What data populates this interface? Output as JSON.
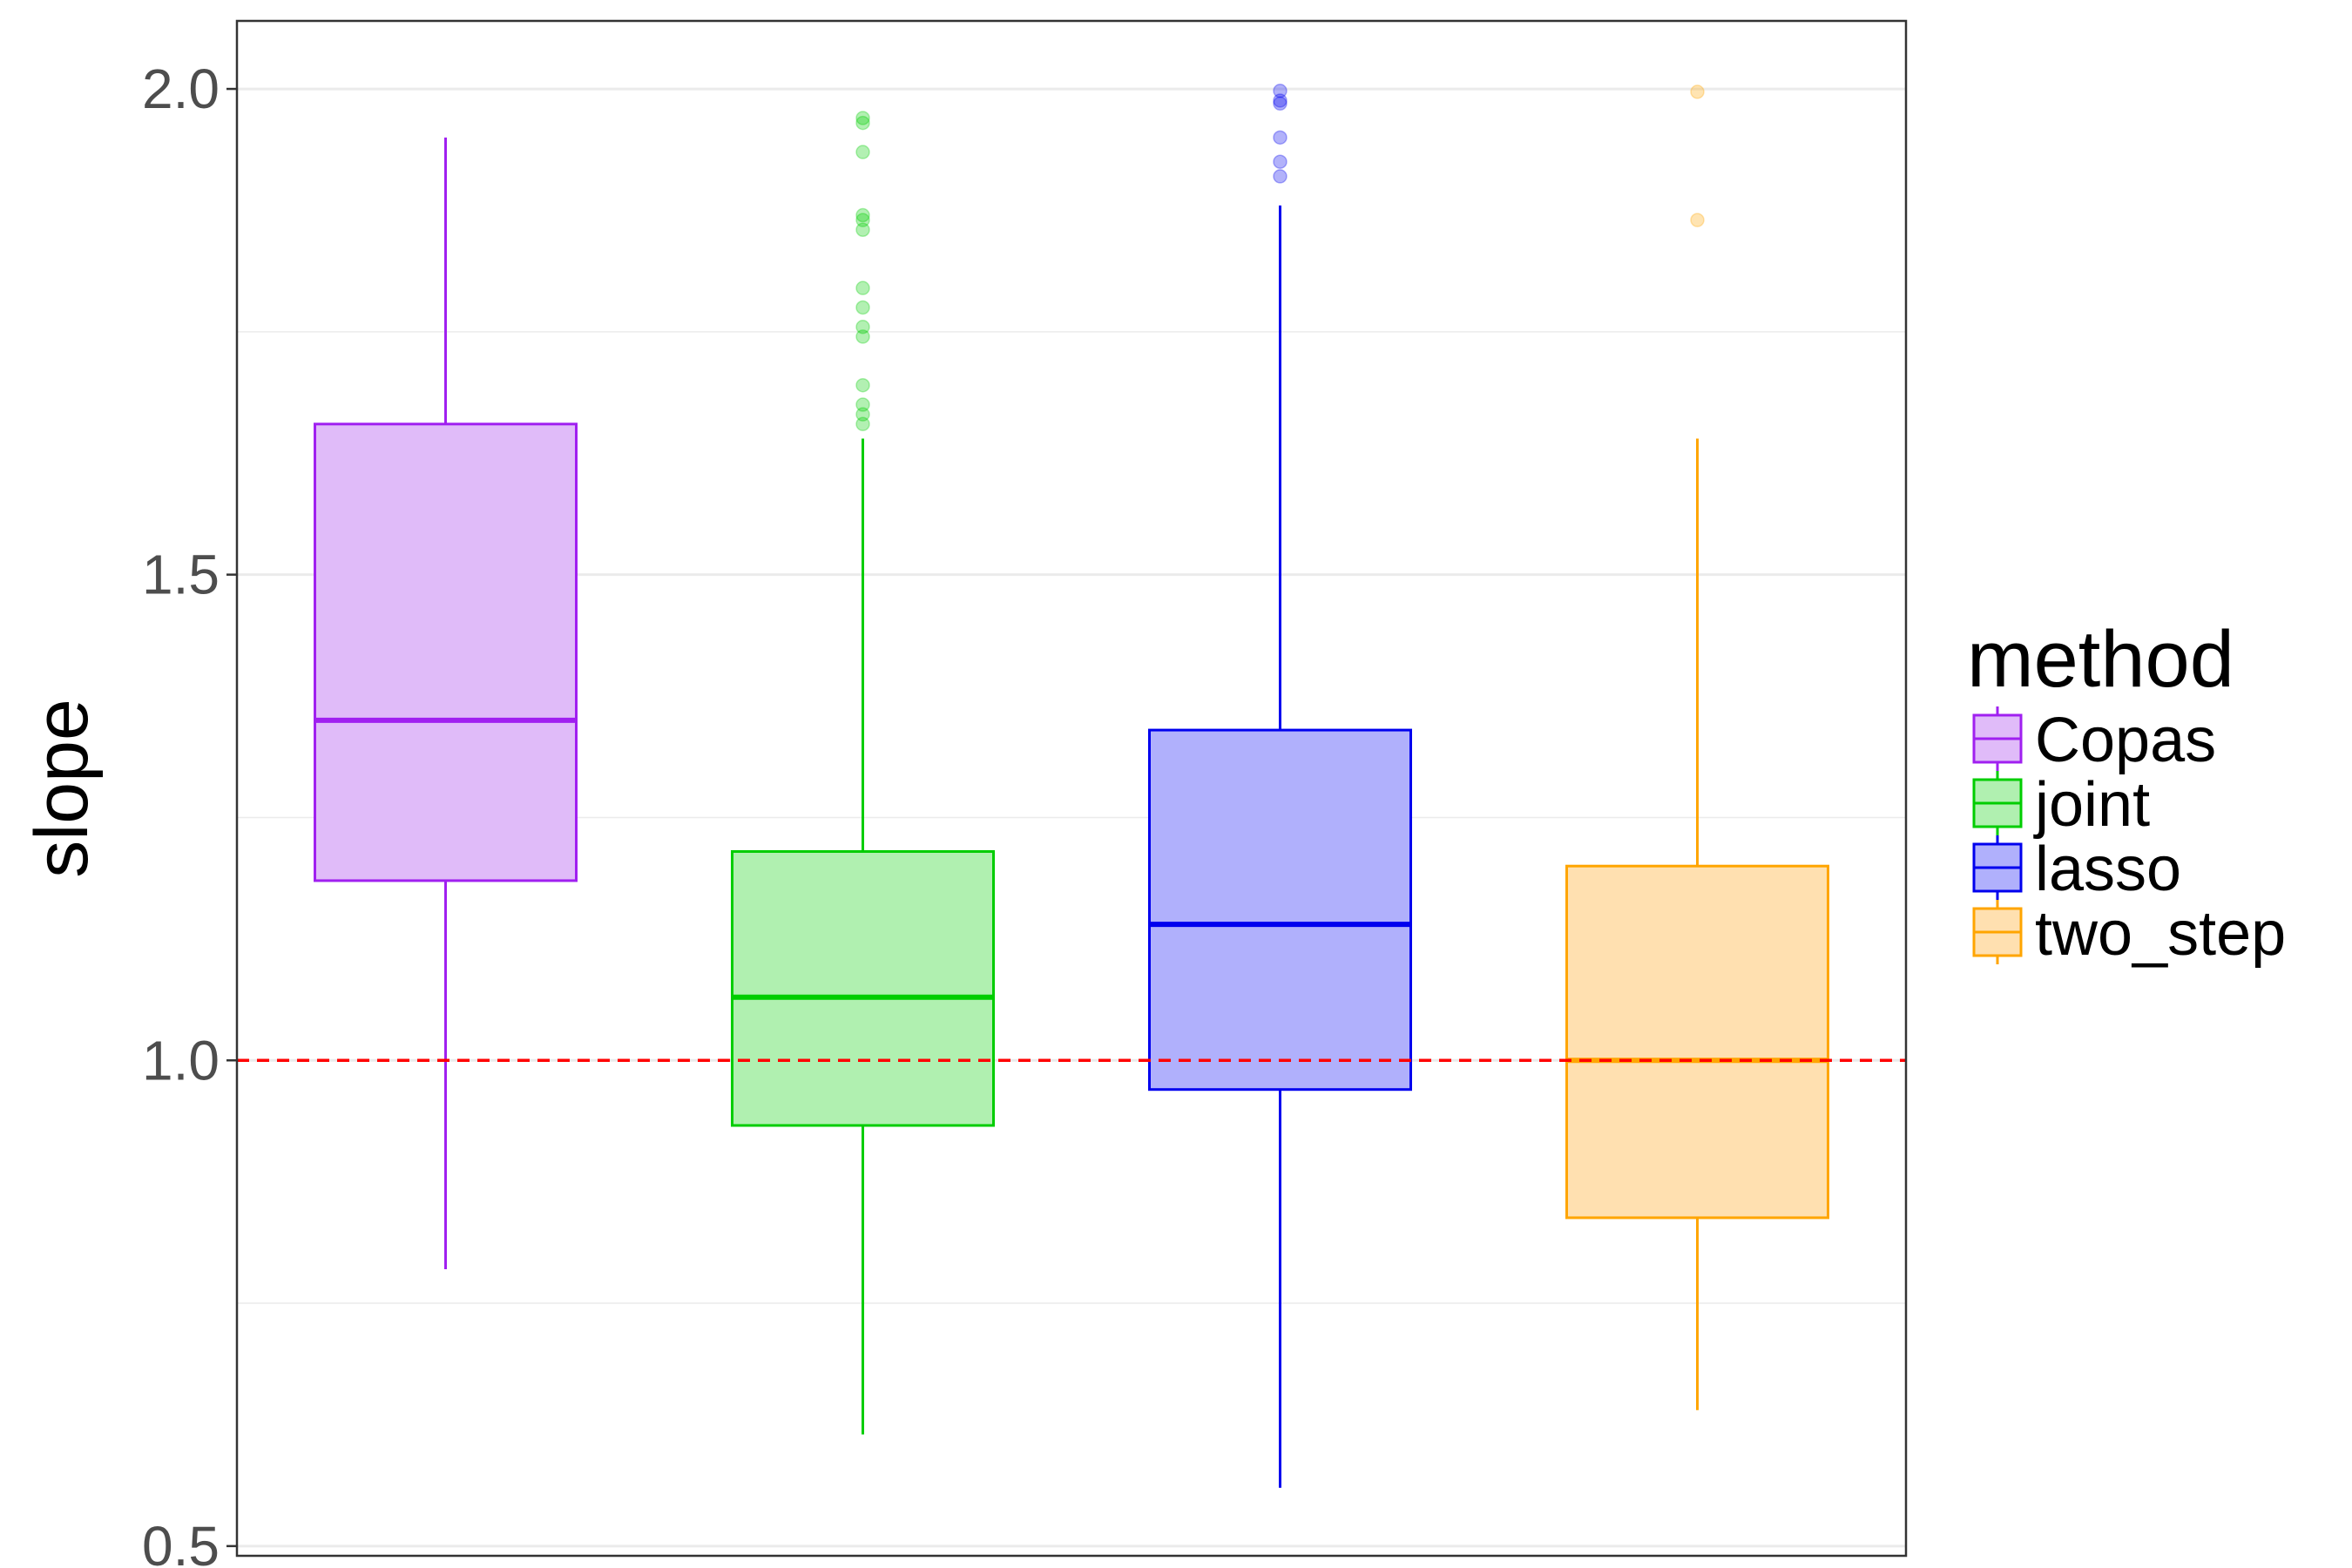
{
  "chart_data": {
    "type": "boxplot",
    "title": "",
    "xlabel": "",
    "ylabel": "slope",
    "ylim": [
      0.49,
      2.07
    ],
    "y_ticks": [
      {
        "value": 0.5,
        "label": "0.5"
      },
      {
        "value": 1.0,
        "label": "1.0"
      },
      {
        "value": 1.5,
        "label": "1.5"
      },
      {
        "value": 2.0,
        "label": "2.0"
      }
    ],
    "minor_gridlines": [
      0.75,
      1.25,
      1.75
    ],
    "reference_line": {
      "value": 1.0,
      "color": "#ff0000",
      "style": "dashed"
    },
    "legend": {
      "title": "method",
      "placement": "right"
    },
    "series": [
      {
        "name": "Copas",
        "color": "#a020f0",
        "fill": "#e0bbf9",
        "whisker_low": 0.785,
        "q1": 1.185,
        "median": 1.35,
        "q3": 1.655,
        "whisker_high": 1.95,
        "outliers": []
      },
      {
        "name": "joint",
        "color": "#00cd00",
        "fill": "#b0f0b0",
        "whisker_low": 0.615,
        "q1": 0.933,
        "median": 1.065,
        "q3": 1.215,
        "whisker_high": 1.64,
        "outliers": [
          1.655,
          1.665,
          1.675,
          1.695,
          1.745,
          1.755,
          1.775,
          1.795,
          1.855,
          1.865,
          1.87,
          1.935,
          1.965,
          1.97
        ]
      },
      {
        "name": "lasso",
        "color": "#0000ee",
        "fill": "#b0b0fc",
        "whisker_low": 0.56,
        "q1": 0.97,
        "median": 1.14,
        "q3": 1.34,
        "whisker_high": 1.88,
        "outliers": [
          1.91,
          1.925,
          1.95,
          1.985,
          1.988,
          1.998
        ]
      },
      {
        "name": "two_step",
        "color": "#ffa500",
        "fill": "#ffe0b0",
        "whisker_low": 0.64,
        "q1": 0.838,
        "median": 1.0,
        "q3": 1.2,
        "whisker_high": 1.64,
        "outliers": [
          1.865,
          1.997
        ]
      }
    ]
  }
}
